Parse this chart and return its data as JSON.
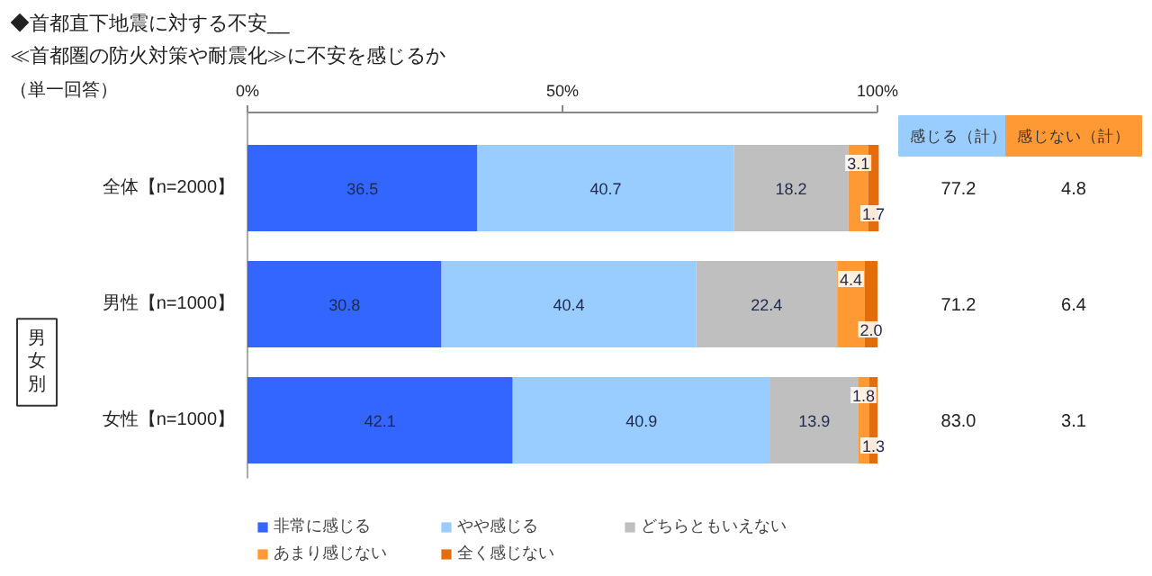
{
  "chart_data": [
    {
      "type": "bar",
      "orientation": "horizontal",
      "stacked": true,
      "title": "◆首都直下地震に対する不安__",
      "subtitle": "≪首都圏の防火対策や耐震化≫に不安を感じるか",
      "annotations": [
        "（単一回答）",
        "男女別"
      ],
      "categories": [
        "全体【n=2000】",
        "男性【n=1000】",
        "女性【n=1000】"
      ],
      "series": [
        {
          "name": "非常に感じる",
          "color": "#3366ff",
          "values": [
            36.5,
            30.8,
            42.1
          ],
          "value_labels": [
            "36.5",
            "30.8",
            "42.1"
          ]
        },
        {
          "name": "やや感じる",
          "color": "#99ccff",
          "values": [
            40.7,
            40.4,
            40.9
          ],
          "value_labels": [
            "40.7",
            "40.4",
            "40.9"
          ]
        },
        {
          "name": "どちらともいえない",
          "color": "#bfbfbf",
          "values": [
            18.2,
            22.4,
            13.9
          ],
          "value_labels": [
            "18.2",
            "22.4",
            "13.9"
          ]
        },
        {
          "name": "あまり感じない",
          "color": "#ff9933",
          "values": [
            3.1,
            4.4,
            1.8
          ],
          "value_labels": [
            "3.1",
            "4.4",
            "1.8"
          ]
        },
        {
          "name": "全く感じない",
          "color": "#e46c0a",
          "values": [
            1.7,
            2.0,
            1.3
          ],
          "value_labels": [
            "1.7",
            "2.0",
            "1.3"
          ]
        }
      ],
      "xlim": [
        0,
        100
      ],
      "xticks": [
        {
          "value": 0,
          "label": "0%"
        },
        {
          "value": 50,
          "label": "50%"
        },
        {
          "value": 100,
          "label": "100%"
        }
      ],
      "legend": "bottom",
      "grid": false
    },
    {
      "type": "other",
      "title": "感じる（計）",
      "color": "#99ccff",
      "annotations": [
        "77.2",
        "71.2",
        "83.0"
      ]
    },
    {
      "type": "other",
      "title": "感じない（計）",
      "color": "#ff9933",
      "annotations": [
        "4.8",
        "6.4",
        "3.1"
      ]
    }
  ]
}
